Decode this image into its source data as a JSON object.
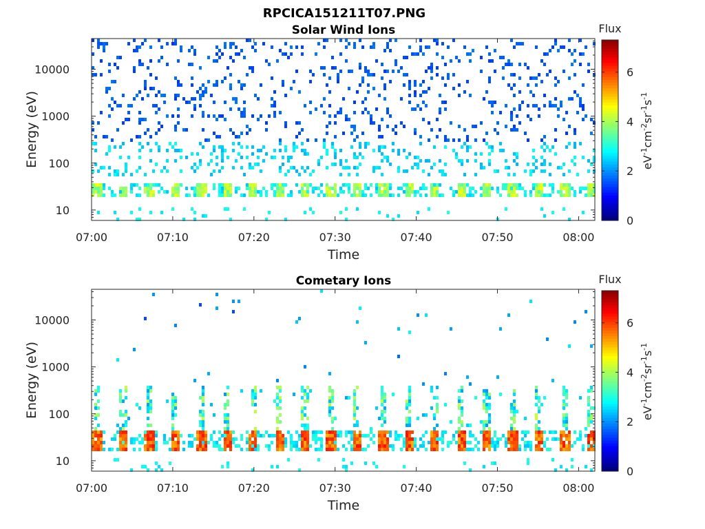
{
  "figure_title": "RPCICA151211T07.PNG",
  "chart_data": [
    {
      "type": "heatmap",
      "title": "Solar Wind Ions",
      "xlabel": "Time",
      "ylabel": "Energy (eV)",
      "y_scale": "log",
      "x_range": [
        "07:00",
        "08:02"
      ],
      "y_range": [
        6,
        45000
      ],
      "x_ticks": [
        "07:00",
        "07:10",
        "07:20",
        "07:30",
        "07:40",
        "07:50",
        "08:00"
      ],
      "y_ticks": [
        "10",
        "100",
        "1000",
        "10000"
      ],
      "colorbar": {
        "title": "Flux",
        "label": "eV-1cm-2sr-1s-1",
        "colormap": "jet",
        "range": [
          0,
          7.3
        ],
        "ticks": [
          "0",
          "2",
          "4",
          "6"
        ]
      },
      "description_values": {
        "pulse_period_minutes": 3.2,
        "core_energy_band_eV": [
          20,
          40
        ],
        "core_flux_level": 4.5,
        "background_flux_level": 1.5
      }
    },
    {
      "type": "heatmap",
      "title": "Cometary Ions",
      "xlabel": "Time",
      "ylabel": "Energy (eV)",
      "y_scale": "log",
      "x_range": [
        "07:00",
        "08:02"
      ],
      "y_range": [
        6,
        45000
      ],
      "x_ticks": [
        "07:00",
        "07:10",
        "07:20",
        "07:30",
        "07:40",
        "07:50",
        "08:00"
      ],
      "y_ticks": [
        "10",
        "100",
        "1000",
        "10000"
      ],
      "colorbar": {
        "title": "Flux",
        "label": "eV-1cm-2sr-1s-1",
        "colormap": "jet",
        "range": [
          0,
          7.3
        ],
        "ticks": [
          "0",
          "2",
          "4",
          "6"
        ]
      },
      "description_values": {
        "pulse_period_minutes": 3.2,
        "core_energy_band_eV": [
          17,
          45
        ],
        "core_flux_level": 6.3,
        "plume_top_eV": 400
      }
    }
  ]
}
